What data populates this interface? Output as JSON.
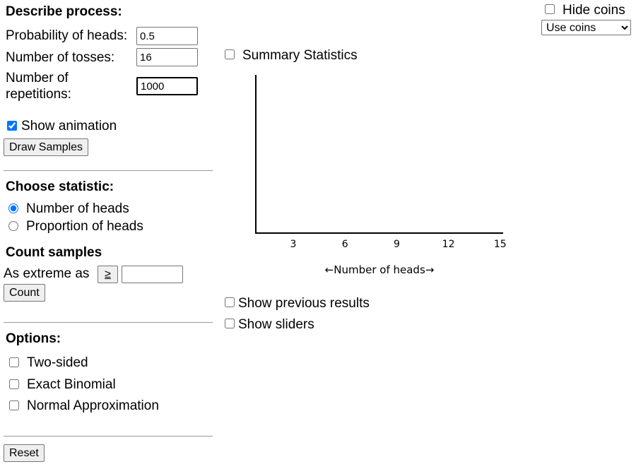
{
  "describe": {
    "heading": "Describe process:",
    "prob_label": "Probability of heads:",
    "prob_value": "0.5",
    "tosses_label": "Number of tosses:",
    "tosses_value": "16",
    "reps_label_line1": "Number of",
    "reps_label_line2": "repetitions:",
    "reps_value": "1000",
    "show_animation_label": "Show animation",
    "show_animation_checked": true,
    "draw_button": "Draw Samples"
  },
  "statistic": {
    "heading": "Choose statistic:",
    "options": [
      "Number of heads",
      "Proportion of heads"
    ],
    "selected": "Number of heads"
  },
  "count": {
    "heading": "Count samples",
    "extreme_label": "As extreme as",
    "operator_button": "≥",
    "value": "",
    "count_button": "Count"
  },
  "options": {
    "heading": "Options:",
    "two_sided": "Two-sided",
    "exact_binomial": "Exact Binomial",
    "normal_approx": "Normal Approximation"
  },
  "reset_button": "Reset",
  "top_right": {
    "hide_coins_label": "Hide coins",
    "select_value": "Use coins"
  },
  "summary_statistics_label": "Summary Statistics",
  "show_previous_label": "Show previous results",
  "show_sliders_label": "Show sliders",
  "chart_data": {
    "type": "bar",
    "xlabel": "←Number of heads→",
    "x_ticks": [
      "3",
      "6",
      "9",
      "12",
      "15"
    ],
    "values": []
  }
}
